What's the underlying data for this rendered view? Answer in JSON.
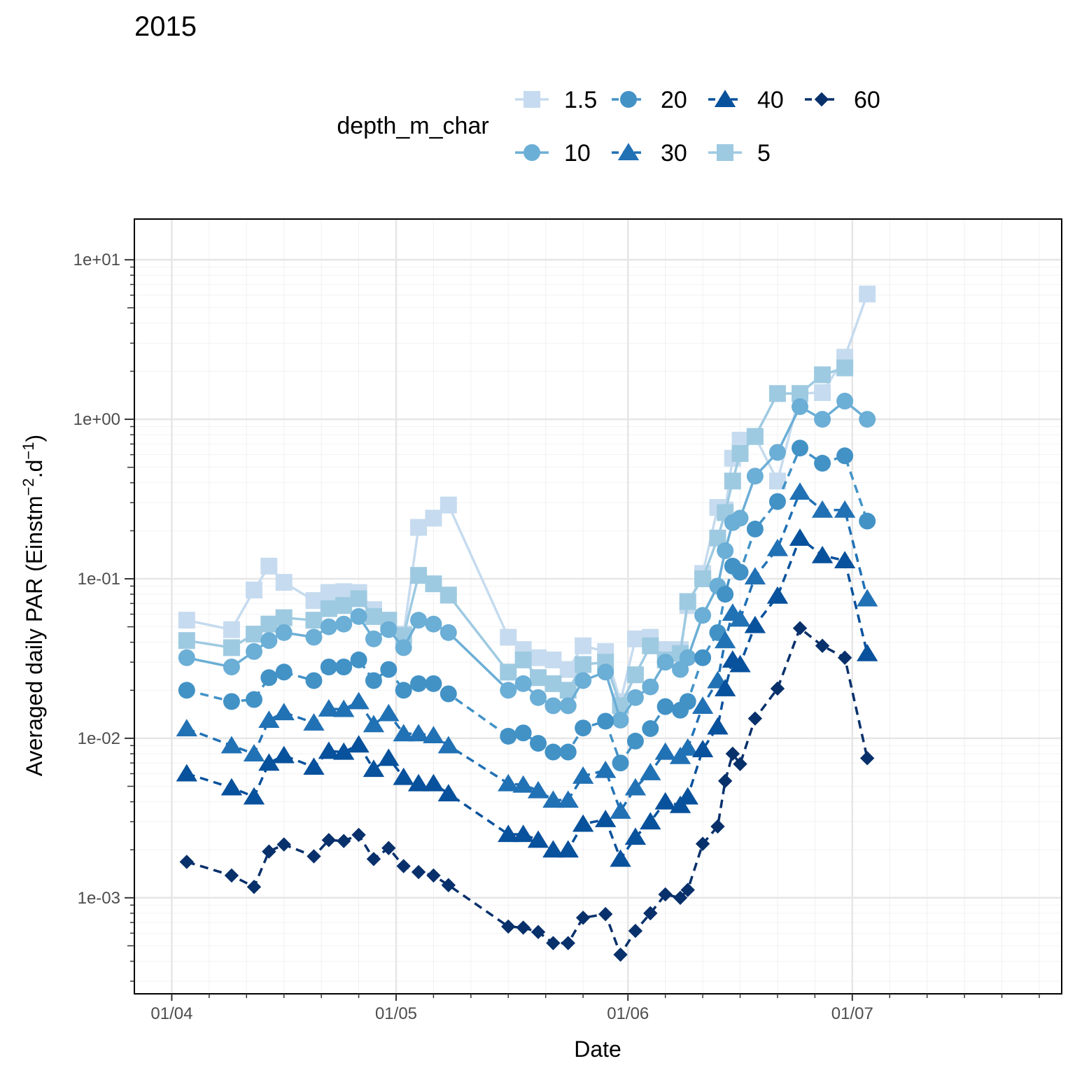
{
  "page_title": "2015",
  "colors": {
    "1.5": "#c6dbef",
    "5": "#9ecae1",
    "10": "#6baed6",
    "20": "#4292c6",
    "30": "#2171b5",
    "40": "#08519c",
    "60": "#08306b"
  },
  "chart_data": {
    "type": "line",
    "title": "2015",
    "xlabel": "Date",
    "ylabel_parts": {
      "main": "Averaged daily PAR (Einstm",
      "exp1": "−2",
      "mid": ".d",
      "exp2": "−1",
      "end": ")"
    },
    "yscale": "log10",
    "ylim": [
      0.00025,
      18
    ],
    "xlim": [
      "2015-03-27",
      "2015-07-29"
    ],
    "x_ticks": [
      {
        "date": "2015-04-01",
        "label": "01/04"
      },
      {
        "date": "2015-05-01",
        "label": "01/05"
      },
      {
        "date": "2015-06-01",
        "label": "01/06"
      },
      {
        "date": "2015-07-01",
        "label": "01/07"
      }
    ],
    "y_ticks": [
      {
        "value": 0.001,
        "label": "1e-03"
      },
      {
        "value": 0.01,
        "label": "1e-02"
      },
      {
        "value": 0.1,
        "label": "1e-01"
      },
      {
        "value": 1,
        "label": "1e+00"
      },
      {
        "value": 10,
        "label": "1e+01"
      }
    ],
    "grid": true,
    "legend": {
      "title": "depth_m_char",
      "position": "top",
      "entries": [
        "1.5",
        "20",
        "40",
        "60",
        "10",
        "30",
        "5"
      ]
    },
    "x": [
      "2015-04-03",
      "2015-04-09",
      "2015-04-12",
      "2015-04-14",
      "2015-04-16",
      "2015-04-20",
      "2015-04-22",
      "2015-04-24",
      "2015-04-26",
      "2015-04-28",
      "2015-04-30",
      "2015-05-02",
      "2015-05-04",
      "2015-05-06",
      "2015-05-08",
      "2015-05-16",
      "2015-05-18",
      "2015-05-20",
      "2015-05-22",
      "2015-05-24",
      "2015-05-26",
      "2015-05-29",
      "2015-05-31",
      "2015-06-02",
      "2015-06-04",
      "2015-06-06",
      "2015-06-08",
      "2015-06-09",
      "2015-06-11",
      "2015-06-13",
      "2015-06-14",
      "2015-06-15",
      "2015-06-16",
      "2015-06-18",
      "2015-06-21",
      "2015-06-24",
      "2015-06-27",
      "2015-06-30",
      "2015-07-03",
      "2015-07-06"
    ],
    "series": [
      {
        "name": "1.5",
        "shape": "square",
        "dashed": false,
        "values": [
          0.055,
          0.048,
          0.085,
          0.12,
          0.095,
          0.073,
          0.082,
          0.083,
          0.082,
          0.064,
          0.052,
          0.045,
          0.21,
          0.24,
          0.29,
          0.043,
          0.036,
          0.032,
          0.031,
          0.027,
          0.038,
          0.035,
          0.017,
          0.042,
          0.043,
          0.036,
          0.036,
          0.068,
          0.108,
          0.28,
          0.27,
          0.57,
          0.74,
          0.78,
          0.41,
          1.45,
          1.47,
          2.45,
          6.1,
          null
        ]
      },
      {
        "name": "5",
        "shape": "square",
        "dashed": false,
        "values": [
          0.041,
          0.037,
          0.045,
          0.052,
          0.057,
          0.055,
          0.065,
          0.068,
          0.075,
          0.058,
          0.055,
          0.044,
          0.105,
          0.093,
          0.079,
          0.026,
          0.031,
          0.024,
          0.022,
          0.02,
          0.029,
          0.03,
          0.016,
          0.025,
          0.038,
          0.031,
          0.034,
          0.072,
          0.1,
          0.18,
          0.26,
          0.41,
          0.61,
          0.78,
          1.45,
          1.45,
          1.9,
          2.1,
          null,
          null
        ]
      },
      {
        "name": "10",
        "shape": "circle",
        "dashed": false,
        "values": [
          0.032,
          0.028,
          0.035,
          0.041,
          0.046,
          0.043,
          0.05,
          0.052,
          0.058,
          0.042,
          0.048,
          0.037,
          0.055,
          0.052,
          0.046,
          0.02,
          0.022,
          0.018,
          0.016,
          0.016,
          0.023,
          0.026,
          0.013,
          0.018,
          0.021,
          0.03,
          0.027,
          0.032,
          0.059,
          0.09,
          0.15,
          0.225,
          0.24,
          0.44,
          0.62,
          1.2,
          1.0,
          1.3,
          1.0,
          null
        ]
      },
      {
        "name": "20",
        "shape": "circle",
        "dashed": true,
        "values": [
          0.02,
          0.017,
          0.0175,
          0.024,
          0.026,
          0.023,
          0.028,
          0.028,
          0.031,
          0.023,
          0.027,
          0.02,
          0.022,
          0.022,
          0.019,
          0.0103,
          0.0108,
          0.0093,
          0.0082,
          0.0082,
          0.0116,
          0.0128,
          0.007,
          0.0096,
          0.0115,
          0.0158,
          0.015,
          0.017,
          0.032,
          0.046,
          0.08,
          0.12,
          0.11,
          0.205,
          0.305,
          0.66,
          0.53,
          0.59,
          0.23,
          null
        ]
      },
      {
        "name": "30",
        "shape": "triangle",
        "dashed": true,
        "values": [
          0.0115,
          0.009,
          0.008,
          0.013,
          0.0145,
          0.0125,
          0.0153,
          0.0152,
          0.017,
          0.0122,
          0.0143,
          0.0107,
          0.0107,
          0.0104,
          0.009,
          0.0052,
          0.0051,
          0.0047,
          0.0041,
          0.0041,
          0.0058,
          0.0063,
          0.0035,
          0.0049,
          0.0061,
          0.0082,
          0.0077,
          0.0087,
          0.0159,
          0.023,
          0.041,
          0.061,
          0.056,
          0.103,
          0.155,
          0.35,
          0.27,
          0.27,
          0.075,
          null
        ]
      },
      {
        "name": "40",
        "shape": "triangle",
        "dashed": true,
        "values": [
          0.006,
          0.0049,
          0.0043,
          0.007,
          0.0078,
          0.0066,
          0.0083,
          0.0082,
          0.0091,
          0.0064,
          0.0075,
          0.0057,
          0.0052,
          0.0052,
          0.0045,
          0.0025,
          0.0025,
          0.0023,
          0.002,
          0.002,
          0.0029,
          0.0031,
          0.00175,
          0.0024,
          0.003,
          0.004,
          0.0038,
          0.0043,
          0.0085,
          0.0118,
          0.0205,
          0.031,
          0.029,
          0.051,
          0.078,
          0.18,
          0.14,
          0.13,
          0.034,
          null
        ]
      },
      {
        "name": "60",
        "shape": "diamond",
        "dashed": true,
        "values": [
          0.00168,
          0.00138,
          0.00117,
          0.00195,
          0.00216,
          0.00182,
          0.0023,
          0.00227,
          0.00248,
          0.00175,
          0.00205,
          0.00158,
          0.00145,
          0.00138,
          0.0012,
          0.00066,
          0.00065,
          0.00061,
          0.00052,
          0.00052,
          0.00075,
          0.00079,
          0.00044,
          0.00062,
          0.0008,
          0.00105,
          0.001,
          0.00112,
          0.00218,
          0.0028,
          0.0054,
          0.008,
          0.0069,
          0.0133,
          0.0205,
          0.049,
          0.038,
          0.032,
          0.0075,
          null
        ]
      }
    ]
  }
}
